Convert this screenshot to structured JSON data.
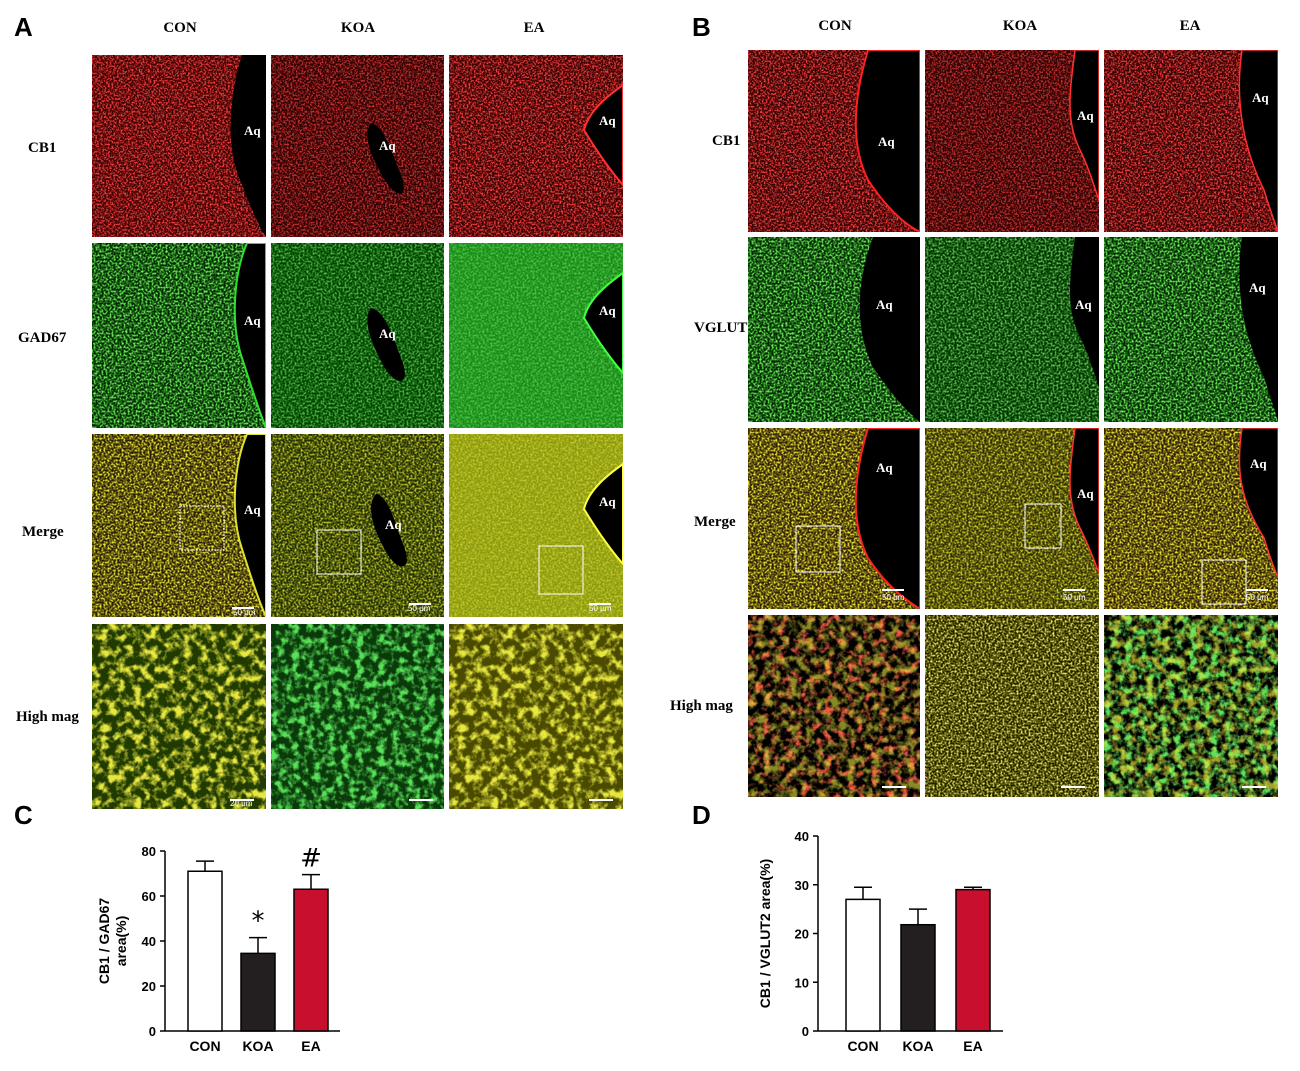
{
  "panels": {
    "A": {
      "letter": "A",
      "columns": [
        "CON",
        "KOA",
        "EA"
      ],
      "rows": [
        "CB1",
        "GAD67",
        "Merge",
        "High mag"
      ],
      "lumen_label": "Aq",
      "scale_labels": [
        "50 μm",
        "50 μm",
        "50 μm"
      ],
      "highmag_scale_labels": [
        "20 μm",
        "",
        ""
      ]
    },
    "B": {
      "letter": "B",
      "columns": [
        "CON",
        "KOA",
        "EA"
      ],
      "rows": [
        "CB1",
        "VGLUT2",
        "Merge",
        "High mag"
      ],
      "lumen_label": "Aq",
      "scale_labels": [
        "50 μm",
        "50 μm",
        "50 μm"
      ]
    },
    "C": {
      "letter": "C"
    },
    "D": {
      "letter": "D"
    }
  },
  "colors": {
    "red_channel": "#e01010",
    "green_channel": "#20c020",
    "merge_yellow": "#c8c020",
    "bar_con": "#ffffff",
    "bar_koa": "#231f20",
    "bar_ea": "#c8102e"
  },
  "chart_data": [
    {
      "type": "bar",
      "panel": "C",
      "categories": [
        "CON",
        "KOA",
        "EA"
      ],
      "values": [
        71,
        34.5,
        63
      ],
      "errors": [
        4.5,
        7,
        6.5
      ],
      "annotations": [
        "",
        "*",
        "#"
      ],
      "ylabel": "CB1 / GAD67 area(%)",
      "ylim": [
        0,
        80
      ],
      "yticks": [
        0,
        20,
        40,
        60,
        80
      ],
      "grid": false
    },
    {
      "type": "bar",
      "panel": "D",
      "categories": [
        "CON",
        "KOA",
        "EA"
      ],
      "values": [
        27,
        21.8,
        29
      ],
      "errors": [
        2.5,
        3.2,
        0.5
      ],
      "annotations": [
        "",
        "",
        ""
      ],
      "ylabel": "CB1 / VGLUT2 area(%)",
      "ylim": [
        0,
        40
      ],
      "yticks": [
        0,
        10,
        20,
        30,
        40
      ],
      "grid": false
    }
  ]
}
